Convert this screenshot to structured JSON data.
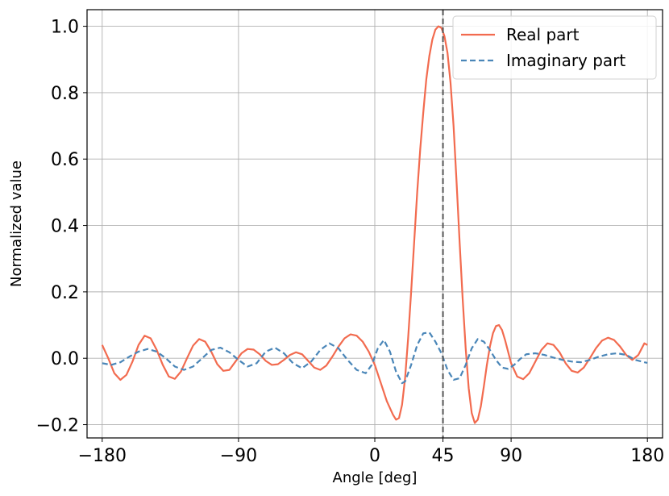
{
  "chart_data": {
    "type": "line",
    "title": "",
    "xlabel": "Angle [deg]",
    "ylabel": "Normalized value",
    "xlim": [
      -190,
      190
    ],
    "ylim": [
      -0.24,
      1.05
    ],
    "xticks": [
      -180,
      -90,
      0,
      45,
      90,
      180
    ],
    "xtick_labels": [
      "−180",
      "−90",
      "0",
      "45",
      "90",
      "180"
    ],
    "yticks": [
      -0.2,
      0.0,
      0.2,
      0.4,
      0.6,
      0.8,
      1.0
    ],
    "ytick_labels": [
      "−0.2",
      "0.0",
      "0.2",
      "0.4",
      "0.6",
      "0.8",
      "1.0"
    ],
    "grid": true,
    "legend_position": "top-right",
    "vline": {
      "x": 45,
      "color": "#555555",
      "style": "dashed"
    },
    "series": [
      {
        "name": "Real part",
        "color": "#f26b4f",
        "style": "solid",
        "points": [
          [
            -180,
            0.04
          ],
          [
            -176,
            0.0
          ],
          [
            -172,
            -0.045
          ],
          [
            -168,
            -0.065
          ],
          [
            -164,
            -0.05
          ],
          [
            -160,
            -0.01
          ],
          [
            -156,
            0.04
          ],
          [
            -152,
            0.068
          ],
          [
            -148,
            0.06
          ],
          [
            -144,
            0.025
          ],
          [
            -140,
            -0.02
          ],
          [
            -136,
            -0.055
          ],
          [
            -132,
            -0.062
          ],
          [
            -128,
            -0.04
          ],
          [
            -124,
            0.0
          ],
          [
            -120,
            0.038
          ],
          [
            -116,
            0.058
          ],
          [
            -112,
            0.05
          ],
          [
            -108,
            0.02
          ],
          [
            -104,
            -0.018
          ],
          [
            -100,
            -0.038
          ],
          [
            -96,
            -0.035
          ],
          [
            -92,
            -0.01
          ],
          [
            -88,
            0.015
          ],
          [
            -84,
            0.028
          ],
          [
            -80,
            0.026
          ],
          [
            -76,
            0.012
          ],
          [
            -72,
            -0.008
          ],
          [
            -68,
            -0.02
          ],
          [
            -64,
            -0.018
          ],
          [
            -60,
            -0.005
          ],
          [
            -56,
            0.01
          ],
          [
            -52,
            0.018
          ],
          [
            -48,
            0.012
          ],
          [
            -44,
            -0.008
          ],
          [
            -40,
            -0.028
          ],
          [
            -36,
            -0.035
          ],
          [
            -32,
            -0.022
          ],
          [
            -28,
            0.005
          ],
          [
            -24,
            0.035
          ],
          [
            -20,
            0.06
          ],
          [
            -16,
            0.072
          ],
          [
            -12,
            0.068
          ],
          [
            -8,
            0.05
          ],
          [
            -4,
            0.02
          ],
          [
            0,
            -0.02
          ],
          [
            4,
            -0.075
          ],
          [
            8,
            -0.13
          ],
          [
            12,
            -0.17
          ],
          [
            14,
            -0.185
          ],
          [
            16,
            -0.18
          ],
          [
            18,
            -0.14
          ],
          [
            20,
            -0.06
          ],
          [
            22,
            0.06
          ],
          [
            24,
            0.2
          ],
          [
            26,
            0.35
          ],
          [
            28,
            0.5
          ],
          [
            30,
            0.63
          ],
          [
            32,
            0.74
          ],
          [
            34,
            0.84
          ],
          [
            36,
            0.91
          ],
          [
            38,
            0.96
          ],
          [
            40,
            0.99
          ],
          [
            42,
            1.0
          ],
          [
            44,
            0.995
          ],
          [
            46,
            0.97
          ],
          [
            48,
            0.92
          ],
          [
            50,
            0.83
          ],
          [
            52,
            0.7
          ],
          [
            54,
            0.53
          ],
          [
            56,
            0.35
          ],
          [
            58,
            0.18
          ],
          [
            60,
            0.03
          ],
          [
            62,
            -0.09
          ],
          [
            64,
            -0.165
          ],
          [
            66,
            -0.195
          ],
          [
            68,
            -0.185
          ],
          [
            70,
            -0.145
          ],
          [
            72,
            -0.085
          ],
          [
            74,
            -0.02
          ],
          [
            76,
            0.035
          ],
          [
            78,
            0.075
          ],
          [
            80,
            0.097
          ],
          [
            82,
            0.1
          ],
          [
            84,
            0.085
          ],
          [
            86,
            0.055
          ],
          [
            88,
            0.02
          ],
          [
            90,
            -0.015
          ],
          [
            94,
            -0.055
          ],
          [
            98,
            -0.063
          ],
          [
            102,
            -0.045
          ],
          [
            106,
            -0.01
          ],
          [
            110,
            0.025
          ],
          [
            114,
            0.045
          ],
          [
            118,
            0.04
          ],
          [
            122,
            0.018
          ],
          [
            126,
            -0.015
          ],
          [
            130,
            -0.038
          ],
          [
            134,
            -0.043
          ],
          [
            138,
            -0.028
          ],
          [
            142,
            0.0
          ],
          [
            146,
            0.03
          ],
          [
            150,
            0.053
          ],
          [
            154,
            0.062
          ],
          [
            158,
            0.055
          ],
          [
            162,
            0.035
          ],
          [
            166,
            0.01
          ],
          [
            170,
            -0.005
          ],
          [
            174,
            0.01
          ],
          [
            178,
            0.045
          ],
          [
            180,
            0.04
          ]
        ]
      },
      {
        "name": "Imaginary part",
        "color": "#4a86b8",
        "style": "dashed",
        "points": [
          [
            -180,
            -0.015
          ],
          [
            -174,
            -0.02
          ],
          [
            -168,
            -0.012
          ],
          [
            -162,
            0.005
          ],
          [
            -156,
            0.02
          ],
          [
            -150,
            0.028
          ],
          [
            -144,
            0.02
          ],
          [
            -138,
            0.0
          ],
          [
            -132,
            -0.025
          ],
          [
            -126,
            -0.035
          ],
          [
            -120,
            -0.025
          ],
          [
            -114,
            0.0
          ],
          [
            -108,
            0.025
          ],
          [
            -102,
            0.032
          ],
          [
            -96,
            0.018
          ],
          [
            -90,
            -0.005
          ],
          [
            -84,
            -0.025
          ],
          [
            -78,
            -0.015
          ],
          [
            -72,
            0.02
          ],
          [
            -66,
            0.032
          ],
          [
            -60,
            0.015
          ],
          [
            -54,
            -0.015
          ],
          [
            -48,
            -0.03
          ],
          [
            -42,
            -0.01
          ],
          [
            -36,
            0.025
          ],
          [
            -30,
            0.045
          ],
          [
            -24,
            0.03
          ],
          [
            -18,
            -0.005
          ],
          [
            -12,
            -0.035
          ],
          [
            -6,
            -0.045
          ],
          [
            -2,
            -0.02
          ],
          [
            2,
            0.03
          ],
          [
            6,
            0.055
          ],
          [
            10,
            0.02
          ],
          [
            14,
            -0.04
          ],
          [
            18,
            -0.075
          ],
          [
            20,
            -0.07
          ],
          [
            24,
            -0.02
          ],
          [
            28,
            0.04
          ],
          [
            32,
            0.075
          ],
          [
            36,
            0.078
          ],
          [
            40,
            0.05
          ],
          [
            44,
            0.015
          ],
          [
            48,
            -0.035
          ],
          [
            52,
            -0.065
          ],
          [
            56,
            -0.06
          ],
          [
            60,
            -0.02
          ],
          [
            64,
            0.03
          ],
          [
            68,
            0.058
          ],
          [
            72,
            0.05
          ],
          [
            76,
            0.025
          ],
          [
            80,
            -0.005
          ],
          [
            84,
            -0.028
          ],
          [
            88,
            -0.032
          ],
          [
            92,
            -0.02
          ],
          [
            96,
            -0.002
          ],
          [
            100,
            0.012
          ],
          [
            106,
            0.015
          ],
          [
            112,
            0.01
          ],
          [
            118,
            0.002
          ],
          [
            124,
            -0.005
          ],
          [
            130,
            -0.01
          ],
          [
            136,
            -0.012
          ],
          [
            142,
            -0.005
          ],
          [
            148,
            0.005
          ],
          [
            154,
            0.012
          ],
          [
            160,
            0.015
          ],
          [
            166,
            0.01
          ],
          [
            172,
            -0.005
          ],
          [
            178,
            -0.012
          ],
          [
            180,
            -0.014
          ]
        ]
      }
    ]
  }
}
